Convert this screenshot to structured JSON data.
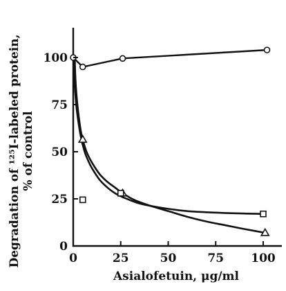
{
  "chart_data": {
    "type": "scatter",
    "xlabel": "Asialofetuin, μg/ml",
    "ylabel_line1": "Degradation of ¹²⁵I-labeled protein,",
    "ylabel_line2": "% of control",
    "xlim": [
      0,
      105
    ],
    "ylim": [
      0,
      115
    ],
    "x_ticks": [
      0,
      25,
      50,
      75,
      100
    ],
    "y_ticks": [
      0,
      25,
      50,
      75,
      100
    ],
    "grid": false,
    "legend": "none",
    "series": [
      {
        "marker": "circle",
        "points": [
          [
            0,
            100
          ],
          [
            5,
            95
          ],
          [
            26,
            99.5
          ],
          [
            102,
            104
          ]
        ],
        "connected": true
      },
      {
        "marker": "triangle",
        "points": [
          [
            5,
            56.5
          ],
          [
            26,
            28
          ],
          [
            101,
            7
          ]
        ],
        "connected": false
      },
      {
        "marker": "square",
        "points": [
          [
            5,
            24.5
          ],
          [
            25,
            28
          ],
          [
            100,
            17
          ]
        ],
        "connected": false
      }
    ],
    "fitted_curves": [
      {
        "points": [
          [
            0,
            100
          ],
          [
            1,
            82
          ],
          [
            2,
            71
          ],
          [
            4,
            58
          ],
          [
            6,
            50
          ],
          [
            8,
            45
          ],
          [
            10,
            41
          ],
          [
            14,
            35
          ],
          [
            18,
            31
          ],
          [
            22,
            28
          ],
          [
            27,
            25.5
          ],
          [
            35,
            22.5
          ],
          [
            45,
            20.5
          ],
          [
            60,
            18.5
          ],
          [
            80,
            17.5
          ],
          [
            101,
            17
          ]
        ]
      },
      {
        "points": [
          [
            0.8,
            100
          ],
          [
            1.2,
            88
          ],
          [
            2,
            77
          ],
          [
            3,
            68
          ],
          [
            4,
            61
          ],
          [
            5,
            56.5
          ],
          [
            7,
            50
          ],
          [
            10,
            44
          ],
          [
            14,
            38
          ],
          [
            18,
            34
          ],
          [
            22,
            31
          ],
          [
            26,
            28
          ],
          [
            32,
            24.5
          ],
          [
            40,
            21.5
          ],
          [
            50,
            18.5
          ],
          [
            60,
            15.5
          ],
          [
            70,
            13
          ],
          [
            80,
            11
          ],
          [
            90,
            9
          ],
          [
            101,
            7
          ]
        ]
      }
    ]
  }
}
